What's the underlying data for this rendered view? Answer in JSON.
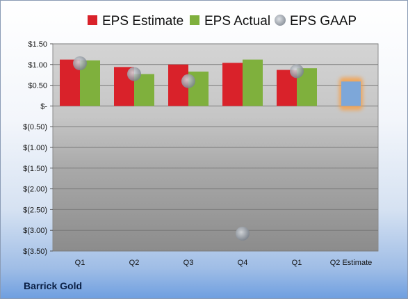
{
  "company": "Barrick Gold",
  "chart_data": {
    "type": "bar",
    "categories": [
      "Q1",
      "Q2",
      "Q3",
      "Q4",
      "Q1",
      "Q2 Estimate"
    ],
    "series": [
      {
        "name": "EPS Estimate",
        "color": "#d9222a",
        "values": [
          1.12,
          0.94,
          1.0,
          1.04,
          0.87,
          null
        ]
      },
      {
        "name": "EPS Actual",
        "color": "#7fb03d",
        "values": [
          1.1,
          0.77,
          0.83,
          1.12,
          0.91,
          null
        ]
      },
      {
        "name": "EPS GAAP",
        "color": "#9aa3ad",
        "marker": "circle",
        "values": [
          1.03,
          0.77,
          0.6,
          -3.08,
          0.84,
          null
        ]
      },
      {
        "name": "Q2 Estimate",
        "color": "#7da7d9",
        "highlight": "#f5a04a",
        "values": [
          null,
          null,
          null,
          null,
          null,
          0.59
        ]
      }
    ],
    "ylim": [
      -3.5,
      1.5
    ],
    "yticks": [
      1.5,
      1.0,
      0.5,
      0,
      -0.5,
      -1.0,
      -1.5,
      -2.0,
      -2.5,
      -3.0,
      -3.5
    ],
    "ytick_labels": [
      "$1.50",
      "$1.00",
      "$0.50",
      "$-",
      "$(0.50)",
      "$(1.00)",
      "$(1.50)",
      "$(2.00)",
      "$(2.50)",
      "$(3.00)",
      "$(3.50)"
    ],
    "legend": [
      "EPS Estimate",
      "EPS Actual",
      "EPS GAAP"
    ],
    "legend_position": "top",
    "grid": true
  }
}
